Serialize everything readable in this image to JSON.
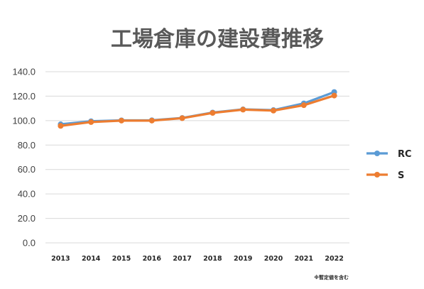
{
  "chart_data": {
    "type": "line",
    "title": "工場倉庫の建設費推移",
    "categories": [
      "2013",
      "2014",
      "2015",
      "2016",
      "2017",
      "2018",
      "2019",
      "2020",
      "2021",
      "2022"
    ],
    "series": [
      {
        "name": "RC",
        "color": "#5b9bd5",
        "values": [
          97.0,
          99.5,
          100.2,
          100.3,
          102.2,
          106.6,
          109.2,
          108.6,
          114.1,
          123.4
        ]
      },
      {
        "name": "S",
        "color": "#ed7d31",
        "values": [
          95.7,
          98.8,
          100.0,
          100.0,
          102.0,
          106.3,
          109.0,
          108.2,
          112.6,
          120.5
        ]
      }
    ],
    "ylim": [
      0,
      140
    ],
    "yticks": [
      "0.0",
      "20.0",
      "40.0",
      "60.0",
      "80.0",
      "100.0",
      "120.0",
      "140.0"
    ],
    "grid": true,
    "legend": "right",
    "note": "※暫定値を含む"
  }
}
